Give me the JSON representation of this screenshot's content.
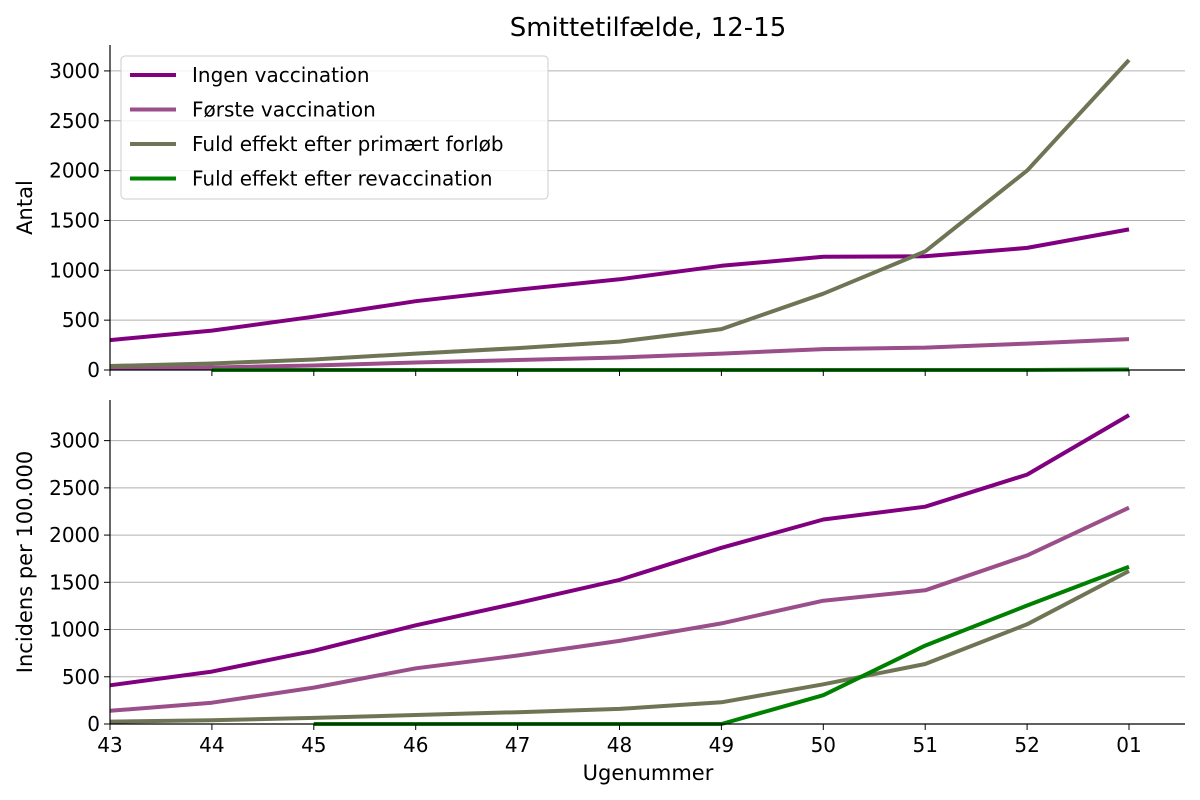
{
  "chart_data": {
    "type": "line",
    "title": "Smittetilfælde, 12-15",
    "xlabel": "Ugenummer",
    "categories": [
      "43",
      "44",
      "45",
      "46",
      "47",
      "48",
      "49",
      "50",
      "51",
      "52",
      "01"
    ],
    "legend": {
      "placement": "top-left"
    },
    "series_styles": [
      {
        "name": "Ingen vaccination",
        "color": "#800080"
      },
      {
        "name": "Første vaccination",
        "color": "#9b4f8a"
      },
      {
        "name": "Fuld effekt efter primært forløb",
        "color": "#6e7555"
      },
      {
        "name": "Fuld effekt efter revaccination",
        "color": "#008000"
      }
    ],
    "panels": [
      {
        "ylabel": "Antal",
        "ylim": [
          0,
          3260
        ],
        "yticks": [
          0,
          500,
          1000,
          1500,
          2000,
          2500,
          3000
        ],
        "grid": true,
        "show_legend": true,
        "series": [
          {
            "name": "Ingen vaccination",
            "values": [
              300,
              395,
              535,
              690,
              805,
              910,
              1045,
              1135,
              1140,
              1225,
              1410
            ]
          },
          {
            "name": "Første vaccination",
            "values": [
              15,
              25,
              45,
              75,
              100,
              125,
              165,
              210,
              225,
              265,
              310
            ]
          },
          {
            "name": "Fuld effekt efter primært forløb",
            "values": [
              40,
              65,
              105,
              165,
              220,
              285,
              410,
              765,
              1190,
              2000,
              3110
            ]
          },
          {
            "name": "Fuld effekt efter revaccination",
            "values": [
              null,
              0,
              0,
              0,
              0,
              0,
              0,
              0,
              0,
              0,
              5
            ]
          }
        ]
      },
      {
        "ylabel": "Incidens per 100.000",
        "ylim": [
          0,
          3430
        ],
        "yticks": [
          0,
          500,
          1000,
          1500,
          2000,
          2500,
          3000
        ],
        "grid": true,
        "show_legend": false,
        "series": [
          {
            "name": "Ingen vaccination",
            "values": [
              410,
              555,
              775,
              1045,
              1280,
              1525,
              1865,
              2165,
              2300,
              2640,
              3270
            ]
          },
          {
            "name": "Første vaccination",
            "values": [
              140,
              225,
              385,
              590,
              725,
              880,
              1065,
              1305,
              1415,
              1785,
              2290
            ]
          },
          {
            "name": "Fuld effekt efter primært forløb",
            "values": [
              25,
              40,
              65,
              95,
              125,
              160,
              230,
              420,
              635,
              1055,
              1620
            ]
          },
          {
            "name": "Fuld effekt efter revaccination",
            "values": [
              null,
              null,
              0,
              0,
              0,
              0,
              0,
              305,
              830,
              1255,
              1665
            ]
          }
        ]
      }
    ]
  }
}
